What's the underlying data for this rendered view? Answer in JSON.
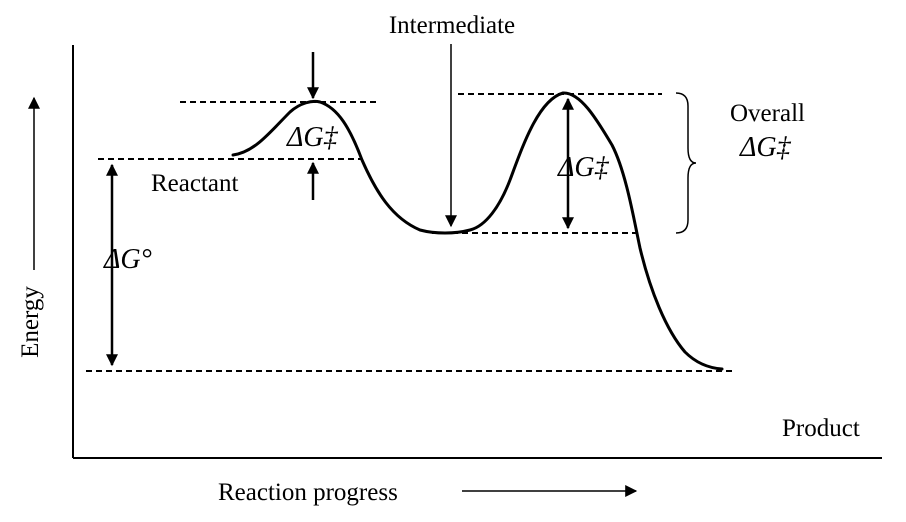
{
  "labels": {
    "intermediate": "Intermediate",
    "overall_line1": "Overall",
    "delta_g_ddagger": "ΔG‡",
    "delta_g_standard": "ΔG°",
    "reactant": "Reactant",
    "product": "Product",
    "energy": "Energy",
    "reaction_progress": "Reaction progress"
  }
}
